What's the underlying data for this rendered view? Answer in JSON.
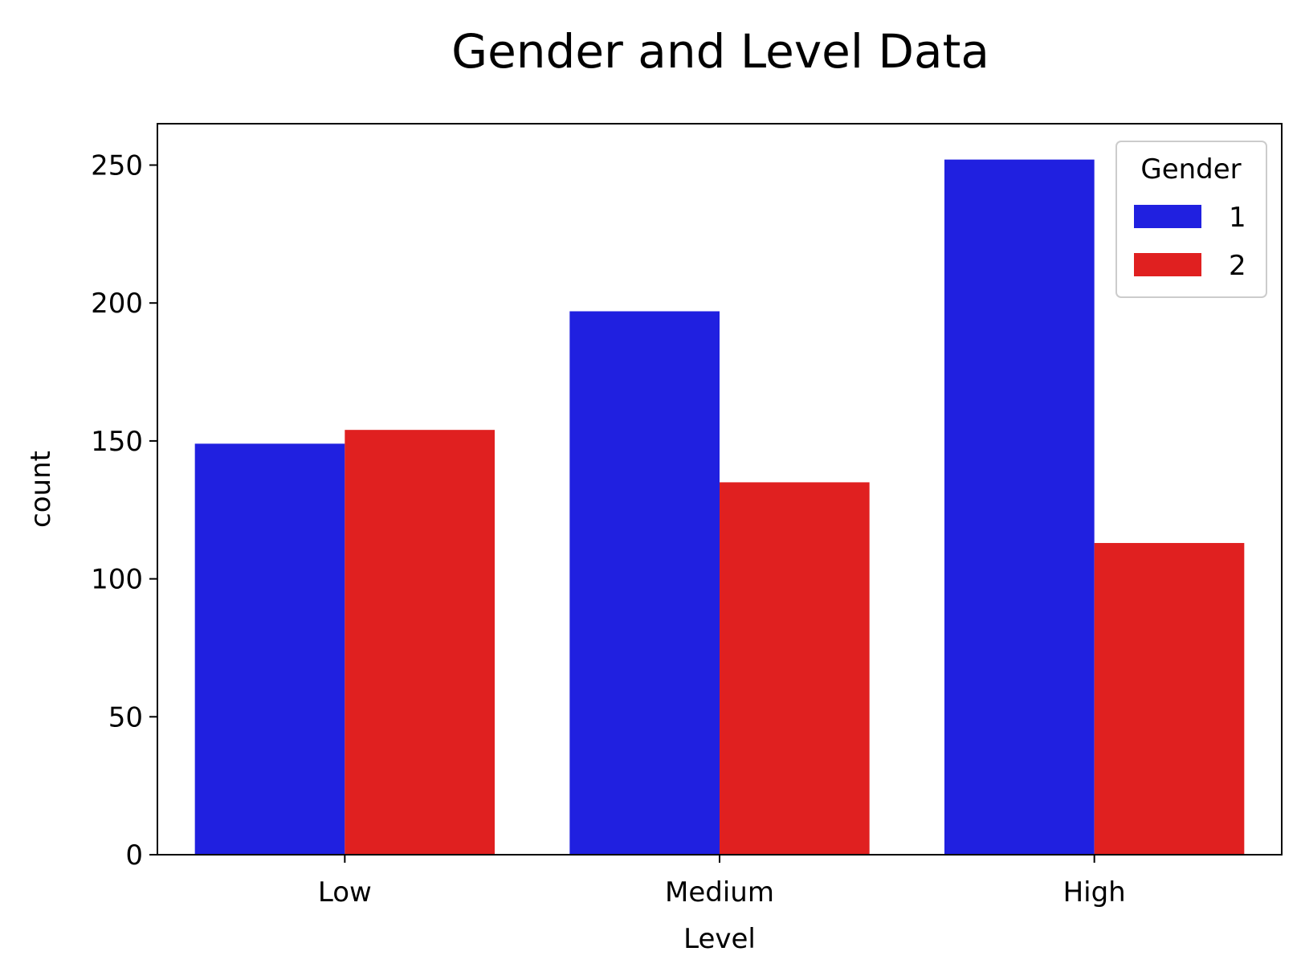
{
  "chart_data": {
    "type": "bar",
    "title": "Gender and Level Data",
    "xlabel": "Level",
    "ylabel": "count",
    "categories": [
      "Low",
      "Medium",
      "High"
    ],
    "series": [
      {
        "name": "1",
        "color": "#2020e0",
        "values": [
          149,
          197,
          252
        ]
      },
      {
        "name": "2",
        "color": "#e02020",
        "values": [
          154,
          135,
          113
        ]
      }
    ],
    "ylim": [
      0,
      265
    ],
    "yticks": [
      0,
      50,
      100,
      150,
      200,
      250
    ],
    "grid": false,
    "legend": {
      "title": "Gender",
      "position": "top-right"
    }
  }
}
